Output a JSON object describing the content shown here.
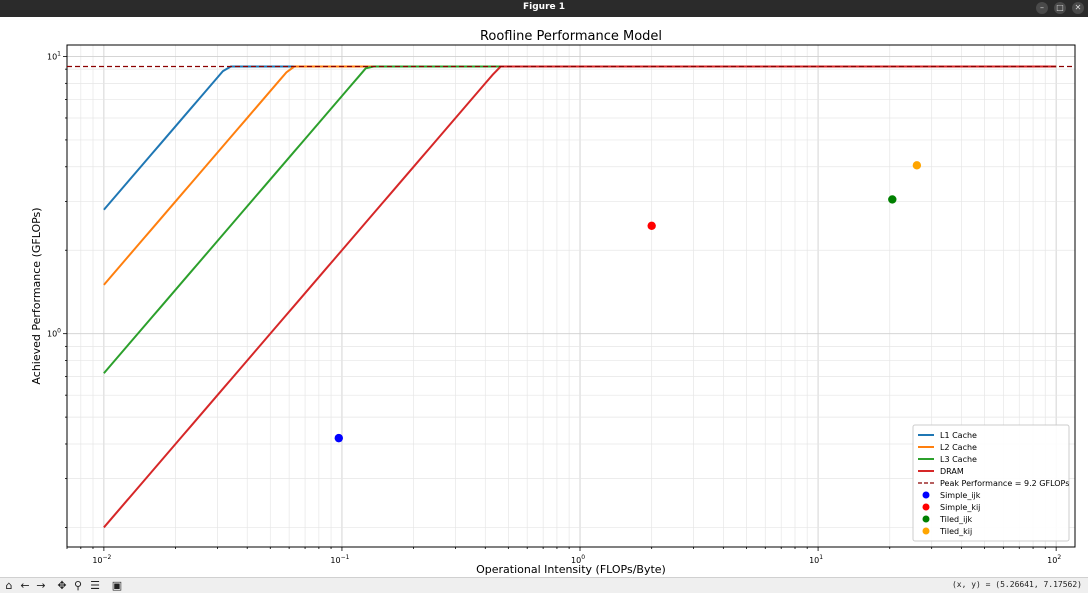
{
  "window": {
    "title": "Figure 1",
    "buttons": {
      "minimize": "–",
      "maximize": "□",
      "close": "✕"
    }
  },
  "toolbar": {
    "icons": [
      "home-icon",
      "back-icon",
      "forward-icon",
      "pan-icon",
      "zoom-icon",
      "configure-icon",
      "save-icon"
    ],
    "glyphs": {
      "home": "⌂",
      "back": "←",
      "forward": "→",
      "pan": "✥",
      "zoom": "⚲",
      "configure": "☰",
      "save": "▣"
    },
    "coords_text": "(x, y) = (5.26641, 7.17562)"
  },
  "chart_data": {
    "type": "line",
    "title": "Roofline Performance Model",
    "xlabel": "Operational Intensity (FLOPs/Byte)",
    "ylabel": "Achieved Performance (GFLOPs)",
    "xscale": "log",
    "yscale": "log",
    "xlim": [
      0.007,
      120
    ],
    "ylim": [
      0.17,
      11
    ],
    "x_ticks": [
      {
        "value": 0.01,
        "base": "10",
        "exp": "−2"
      },
      {
        "value": 0.1,
        "base": "10",
        "exp": "−1"
      },
      {
        "value": 1,
        "base": "10",
        "exp": "0"
      },
      {
        "value": 10,
        "base": "10",
        "exp": "1"
      },
      {
        "value": 100,
        "base": "10",
        "exp": "2"
      }
    ],
    "y_ticks": [
      {
        "value": 1,
        "base": "10",
        "exp": "0"
      },
      {
        "value": 10,
        "base": "10",
        "exp": "1"
      }
    ],
    "grid": "both (major and minor)",
    "legend_position": "lower right",
    "peak": {
      "name": "Peak Performance = 9.2 GFLOPs",
      "value": 9.2,
      "color": "#8b0000",
      "style": "dashed"
    },
    "series": [
      {
        "name": "L1 Cache",
        "color": "#1f77b4",
        "bandwidth": 280,
        "x_range": [
          0.01,
          100
        ]
      },
      {
        "name": "L2 Cache",
        "color": "#ff7f0e",
        "bandwidth": 150,
        "x_range": [
          0.01,
          100
        ]
      },
      {
        "name": "L3 Cache",
        "color": "#2ca02c",
        "bandwidth": 72,
        "x_range": [
          0.01,
          100
        ]
      },
      {
        "name": "DRAM",
        "color": "#d62728",
        "bandwidth": 20,
        "x_range": [
          0.01,
          100
        ]
      }
    ],
    "points": [
      {
        "name": "Simple_ijk",
        "x": 0.097,
        "y": 0.42,
        "color": "#0000ff"
      },
      {
        "name": "Simple_kij",
        "x": 2.0,
        "y": 2.45,
        "color": "#ff0000"
      },
      {
        "name": "Tiled_ijk",
        "x": 20.5,
        "y": 3.05,
        "color": "#008000"
      },
      {
        "name": "Tiled_kij",
        "x": 26.0,
        "y": 4.05,
        "color": "#ffa500"
      }
    ]
  }
}
